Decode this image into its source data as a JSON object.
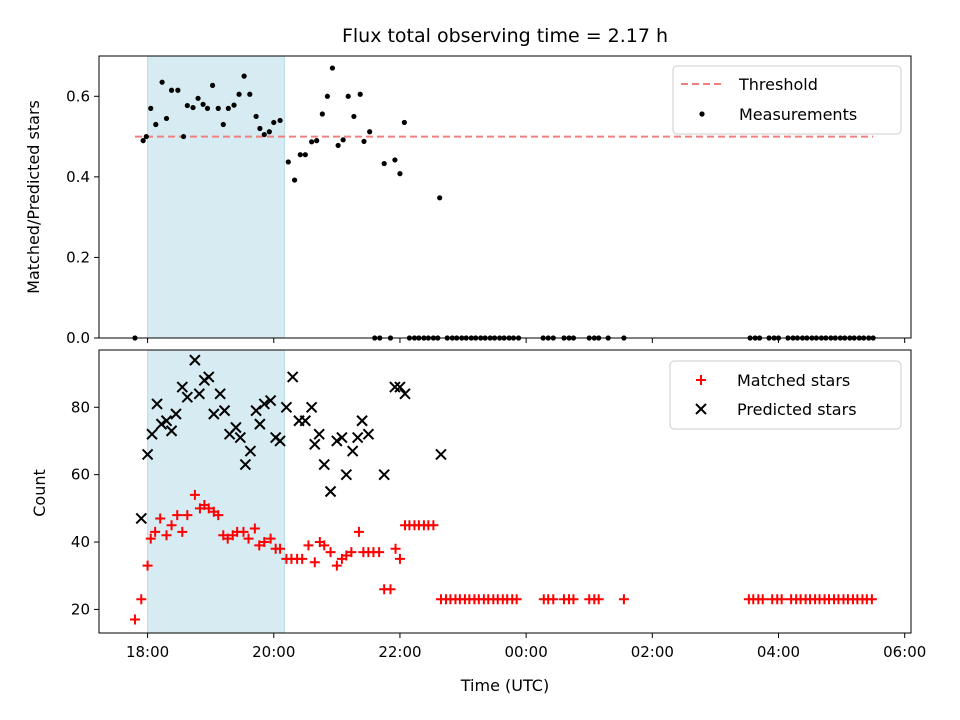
{
  "chart_data": {
    "title": "Flux total observing time = 2.17 h",
    "time_ticks": [
      "18:00",
      "20:00",
      "22:00",
      "00:00",
      "02:00",
      "04:00",
      "06:00"
    ],
    "colors": {
      "threshold": "#f08080",
      "measurement": "#000000",
      "matched": "#ff0000",
      "predicted": "#000000",
      "window": "#add8e6"
    },
    "top": {
      "type": "scatter",
      "ylabel": "Matched/Predicted stars",
      "ylim": [
        0,
        0.7
      ],
      "yticks": [
        0.0,
        0.2,
        0.4,
        0.6
      ],
      "ytick_labels": [
        "0.0",
        "0.2",
        "0.4",
        "0.6"
      ],
      "threshold": {
        "name": "Threshold",
        "value": 0.5,
        "x_range": [
          17.8,
          29.5
        ]
      },
      "series_name": "Measurements",
      "points": [
        [
          17.8,
          0.0
        ],
        [
          17.93,
          0.49
        ],
        [
          17.98,
          0.5
        ],
        [
          18.05,
          0.57
        ],
        [
          18.13,
          0.53
        ],
        [
          18.23,
          0.635
        ],
        [
          18.3,
          0.545
        ],
        [
          18.38,
          0.615
        ],
        [
          18.48,
          0.615
        ],
        [
          18.57,
          0.5
        ],
        [
          18.63,
          0.577
        ],
        [
          18.72,
          0.572
        ],
        [
          18.8,
          0.595
        ],
        [
          18.88,
          0.58
        ],
        [
          18.95,
          0.57
        ],
        [
          19.03,
          0.627
        ],
        [
          19.12,
          0.57
        ],
        [
          19.2,
          0.53
        ],
        [
          19.28,
          0.57
        ],
        [
          19.37,
          0.578
        ],
        [
          19.45,
          0.605
        ],
        [
          19.53,
          0.65
        ],
        [
          19.62,
          0.605
        ],
        [
          19.72,
          0.55
        ],
        [
          19.78,
          0.52
        ],
        [
          19.85,
          0.505
        ],
        [
          19.93,
          0.512
        ],
        [
          20.0,
          0.535
        ],
        [
          20.1,
          0.54
        ],
        [
          20.23,
          0.437
        ],
        [
          20.33,
          0.392
        ],
        [
          20.42,
          0.455
        ],
        [
          20.5,
          0.455
        ],
        [
          20.6,
          0.487
        ],
        [
          20.68,
          0.49
        ],
        [
          20.77,
          0.556
        ],
        [
          20.85,
          0.6
        ],
        [
          20.93,
          0.67
        ],
        [
          21.02,
          0.478
        ],
        [
          21.1,
          0.492
        ],
        [
          21.18,
          0.6
        ],
        [
          21.27,
          0.55
        ],
        [
          21.37,
          0.605
        ],
        [
          21.43,
          0.488
        ],
        [
          21.52,
          0.512
        ],
        [
          21.75,
          0.433
        ],
        [
          21.92,
          0.442
        ],
        [
          22.0,
          0.408
        ],
        [
          22.07,
          0.535
        ],
        [
          22.63,
          0.348
        ],
        [
          21.6,
          0.0
        ],
        [
          21.68,
          0.0
        ],
        [
          21.85,
          0.0
        ],
        [
          22.15,
          0.0
        ],
        [
          22.23,
          0.0
        ],
        [
          22.3,
          0.0
        ],
        [
          22.38,
          0.0
        ],
        [
          22.45,
          0.0
        ],
        [
          22.53,
          0.0
        ],
        [
          22.6,
          0.0
        ],
        [
          22.75,
          0.0
        ],
        [
          22.83,
          0.0
        ],
        [
          22.9,
          0.0
        ],
        [
          22.98,
          0.0
        ],
        [
          23.05,
          0.0
        ],
        [
          23.13,
          0.0
        ],
        [
          23.2,
          0.0
        ],
        [
          23.28,
          0.0
        ],
        [
          23.35,
          0.0
        ],
        [
          23.43,
          0.0
        ],
        [
          23.5,
          0.0
        ],
        [
          23.58,
          0.0
        ],
        [
          23.65,
          0.0
        ],
        [
          23.73,
          0.0
        ],
        [
          23.8,
          0.0
        ],
        [
          23.88,
          0.0
        ],
        [
          24.27,
          0.0
        ],
        [
          24.35,
          0.0
        ],
        [
          24.43,
          0.0
        ],
        [
          24.6,
          0.0
        ],
        [
          24.68,
          0.0
        ],
        [
          24.75,
          0.0
        ],
        [
          25.0,
          0.0
        ],
        [
          25.08,
          0.0
        ],
        [
          25.15,
          0.0
        ],
        [
          25.3,
          0.0
        ],
        [
          25.55,
          0.0
        ],
        [
          27.55,
          0.0
        ],
        [
          27.63,
          0.0
        ],
        [
          27.7,
          0.0
        ],
        [
          27.85,
          0.0
        ],
        [
          27.93,
          0.0
        ],
        [
          28.0,
          0.0
        ],
        [
          28.15,
          0.0
        ],
        [
          28.23,
          0.0
        ],
        [
          28.3,
          0.0
        ],
        [
          28.38,
          0.0
        ],
        [
          28.45,
          0.0
        ],
        [
          28.53,
          0.0
        ],
        [
          28.6,
          0.0
        ],
        [
          28.68,
          0.0
        ],
        [
          28.75,
          0.0
        ],
        [
          28.83,
          0.0
        ],
        [
          28.9,
          0.0
        ],
        [
          28.98,
          0.0
        ],
        [
          29.05,
          0.0
        ],
        [
          29.13,
          0.0
        ],
        [
          29.2,
          0.0
        ],
        [
          29.28,
          0.0
        ],
        [
          29.35,
          0.0
        ],
        [
          29.43,
          0.0
        ],
        [
          29.5,
          0.0
        ]
      ]
    },
    "bottom": {
      "type": "scatter",
      "xlabel": "Time (UTC)",
      "ylabel": "Count",
      "ylim": [
        13,
        97
      ],
      "yticks": [
        20,
        40,
        60,
        80
      ],
      "ytick_labels": [
        "20",
        "40",
        "60",
        "80"
      ],
      "series": [
        {
          "name": "Matched stars",
          "marker": "plus",
          "points": [
            [
              17.8,
              17
            ],
            [
              17.9,
              23
            ],
            [
              18.0,
              33
            ],
            [
              18.05,
              41
            ],
            [
              18.12,
              43
            ],
            [
              18.2,
              47
            ],
            [
              18.3,
              42
            ],
            [
              18.38,
              45
            ],
            [
              18.47,
              48
            ],
            [
              18.55,
              43
            ],
            [
              18.63,
              48
            ],
            [
              18.75,
              54
            ],
            [
              18.83,
              50
            ],
            [
              18.9,
              51
            ],
            [
              18.97,
              50
            ],
            [
              19.05,
              49
            ],
            [
              19.12,
              48
            ],
            [
              19.2,
              42
            ],
            [
              19.27,
              41
            ],
            [
              19.35,
              42
            ],
            [
              19.42,
              43
            ],
            [
              19.52,
              43
            ],
            [
              19.6,
              41
            ],
            [
              19.7,
              44
            ],
            [
              19.77,
              39
            ],
            [
              19.85,
              40
            ],
            [
              19.95,
              41
            ],
            [
              20.03,
              38
            ],
            [
              20.1,
              38
            ],
            [
              20.2,
              35
            ],
            [
              20.28,
              35
            ],
            [
              20.37,
              35
            ],
            [
              20.45,
              35
            ],
            [
              20.55,
              39
            ],
            [
              20.65,
              34
            ],
            [
              20.73,
              40
            ],
            [
              20.8,
              39
            ],
            [
              20.9,
              37
            ],
            [
              21.0,
              33
            ],
            [
              21.08,
              35
            ],
            [
              21.15,
              36
            ],
            [
              21.23,
              37
            ],
            [
              21.35,
              43
            ],
            [
              21.42,
              37
            ],
            [
              21.5,
              37
            ],
            [
              21.58,
              37
            ],
            [
              21.67,
              37
            ],
            [
              21.75,
              26
            ],
            [
              21.85,
              26
            ],
            [
              21.93,
              38
            ],
            [
              22.0,
              35
            ],
            [
              22.08,
              45
            ],
            [
              22.15,
              45
            ],
            [
              22.23,
              45
            ],
            [
              22.3,
              45
            ],
            [
              22.38,
              45
            ],
            [
              22.45,
              45
            ],
            [
              22.53,
              45
            ],
            [
              22.65,
              23
            ],
            [
              22.73,
              23
            ],
            [
              22.8,
              23
            ],
            [
              22.88,
              23
            ],
            [
              22.95,
              23
            ],
            [
              23.03,
              23
            ],
            [
              23.1,
              23
            ],
            [
              23.18,
              23
            ],
            [
              23.25,
              23
            ],
            [
              23.33,
              23
            ],
            [
              23.4,
              23
            ],
            [
              23.48,
              23
            ],
            [
              23.55,
              23
            ],
            [
              23.63,
              23
            ],
            [
              23.7,
              23
            ],
            [
              23.78,
              23
            ],
            [
              23.85,
              23
            ],
            [
              24.28,
              23
            ],
            [
              24.35,
              23
            ],
            [
              24.43,
              23
            ],
            [
              24.6,
              23
            ],
            [
              24.68,
              23
            ],
            [
              24.75,
              23
            ],
            [
              25.0,
              23
            ],
            [
              25.08,
              23
            ],
            [
              25.15,
              23
            ],
            [
              25.55,
              23
            ],
            [
              27.53,
              23
            ],
            [
              27.6,
              23
            ],
            [
              27.68,
              23
            ],
            [
              27.75,
              23
            ],
            [
              27.9,
              23
            ],
            [
              27.98,
              23
            ],
            [
              28.05,
              23
            ],
            [
              28.2,
              23
            ],
            [
              28.28,
              23
            ],
            [
              28.35,
              23
            ],
            [
              28.43,
              23
            ],
            [
              28.5,
              23
            ],
            [
              28.58,
              23
            ],
            [
              28.65,
              23
            ],
            [
              28.73,
              23
            ],
            [
              28.8,
              23
            ],
            [
              28.88,
              23
            ],
            [
              28.95,
              23
            ],
            [
              29.03,
              23
            ],
            [
              29.1,
              23
            ],
            [
              29.18,
              23
            ],
            [
              29.25,
              23
            ],
            [
              29.33,
              23
            ],
            [
              29.4,
              23
            ],
            [
              29.48,
              23
            ]
          ]
        },
        {
          "name": "Predicted stars",
          "marker": "cross",
          "points": [
            [
              17.9,
              47
            ],
            [
              18.0,
              66
            ],
            [
              18.07,
              72
            ],
            [
              18.15,
              81
            ],
            [
              18.22,
              75
            ],
            [
              18.3,
              76
            ],
            [
              18.38,
              73
            ],
            [
              18.45,
              78
            ],
            [
              18.55,
              86
            ],
            [
              18.63,
              83
            ],
            [
              18.75,
              94
            ],
            [
              18.82,
              84
            ],
            [
              18.9,
              88
            ],
            [
              18.97,
              89
            ],
            [
              19.05,
              78
            ],
            [
              19.15,
              84
            ],
            [
              19.22,
              79
            ],
            [
              19.3,
              72
            ],
            [
              19.4,
              74
            ],
            [
              19.47,
              71
            ],
            [
              19.55,
              63
            ],
            [
              19.63,
              67
            ],
            [
              19.72,
              79
            ],
            [
              19.78,
              75
            ],
            [
              19.85,
              81
            ],
            [
              19.95,
              82
            ],
            [
              20.03,
              71
            ],
            [
              20.1,
              70
            ],
            [
              20.2,
              80
            ],
            [
              20.3,
              89
            ],
            [
              20.4,
              76
            ],
            [
              20.5,
              76
            ],
            [
              20.6,
              80
            ],
            [
              20.65,
              69
            ],
            [
              20.72,
              72
            ],
            [
              20.8,
              63
            ],
            [
              20.9,
              55
            ],
            [
              21.0,
              70
            ],
            [
              21.08,
              71
            ],
            [
              21.15,
              60
            ],
            [
              21.25,
              67
            ],
            [
              21.33,
              71
            ],
            [
              21.4,
              76
            ],
            [
              21.5,
              72
            ],
            [
              21.75,
              60
            ],
            [
              21.92,
              86
            ],
            [
              22.0,
              86
            ],
            [
              22.08,
              84
            ],
            [
              22.65,
              66
            ]
          ]
        }
      ]
    },
    "observing_window_hours": [
      18.0,
      20.17
    ]
  }
}
